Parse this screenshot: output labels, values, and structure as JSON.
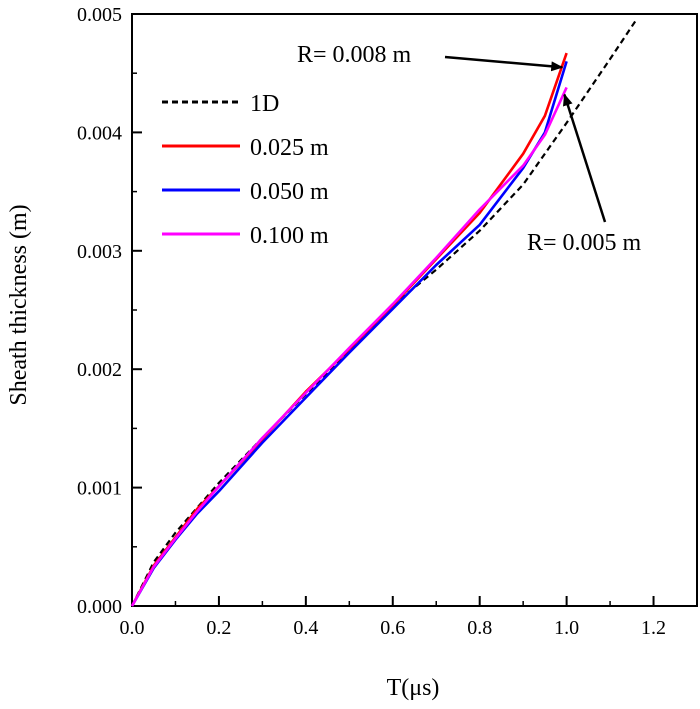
{
  "chart_data": {
    "type": "line",
    "title": "",
    "xlabel": "T(μs)",
    "ylabel": "Sheath thickness (m)",
    "xlim": [
      0.0,
      1.3
    ],
    "ylim": [
      0.0,
      0.005
    ],
    "xticks": [
      0.0,
      0.2,
      0.4,
      0.6,
      0.8,
      1.0,
      1.2
    ],
    "xtick_labels": [
      "0.0",
      "0.2",
      "0.4",
      "0.6",
      "0.8",
      "1.0",
      "1.2"
    ],
    "yticks": [
      0.0,
      0.001,
      0.002,
      0.003,
      0.004,
      0.005
    ],
    "ytick_labels": [
      "0.000",
      "0.001",
      "0.002",
      "0.003",
      "0.004",
      "0.005"
    ],
    "grid": false,
    "legend_position": "top-left",
    "series": [
      {
        "name": "1D",
        "color": "#000000",
        "style": "dashed",
        "x": [
          0.0,
          0.05,
          0.1,
          0.2,
          0.3,
          0.4,
          0.5,
          0.6,
          0.7,
          0.8,
          0.9,
          1.0,
          1.1,
          1.16
        ],
        "y": [
          0.0,
          0.00037,
          0.00062,
          0.00104,
          0.00142,
          0.00179,
          0.00216,
          0.00254,
          0.00284,
          0.00317,
          0.00356,
          0.00408,
          0.00462,
          0.00495
        ]
      },
      {
        "name": "0.025 m",
        "color": "#ff0000",
        "style": "solid",
        "x": [
          0.0,
          0.05,
          0.1,
          0.15,
          0.2,
          0.3,
          0.4,
          0.5,
          0.6,
          0.7,
          0.8,
          0.9,
          0.95,
          1.0
        ],
        "y": [
          0.0,
          0.00034,
          0.00058,
          0.00082,
          0.00101,
          0.00141,
          0.00181,
          0.00217,
          0.00254,
          0.00293,
          0.00332,
          0.00382,
          0.00414,
          0.00467
        ]
      },
      {
        "name": "0.050 m",
        "color": "#0000ff",
        "style": "solid",
        "x": [
          0.0,
          0.05,
          0.1,
          0.15,
          0.2,
          0.3,
          0.4,
          0.5,
          0.6,
          0.7,
          0.8,
          0.9,
          0.95,
          1.0
        ],
        "y": [
          0.0,
          0.00032,
          0.00056,
          0.00078,
          0.00097,
          0.00138,
          0.00176,
          0.00214,
          0.00251,
          0.00288,
          0.00322,
          0.0037,
          0.004,
          0.0046
        ]
      },
      {
        "name": "0.100 m",
        "color": "#ff00ff",
        "style": "solid",
        "x": [
          0.0,
          0.05,
          0.1,
          0.15,
          0.2,
          0.3,
          0.4,
          0.5,
          0.6,
          0.7,
          0.8,
          0.9,
          0.95,
          1.0
        ],
        "y": [
          0.0,
          0.00033,
          0.00057,
          0.0008,
          0.00101,
          0.00142,
          0.0018,
          0.00218,
          0.00255,
          0.00294,
          0.00335,
          0.00372,
          0.00398,
          0.00438
        ]
      }
    ],
    "annotations": [
      {
        "text": "R= 0.008 m",
        "arrow_to": [
          0.99,
          0.00455
        ]
      },
      {
        "text": "R= 0.005 m",
        "arrow_to": [
          0.995,
          0.00432
        ]
      }
    ]
  }
}
